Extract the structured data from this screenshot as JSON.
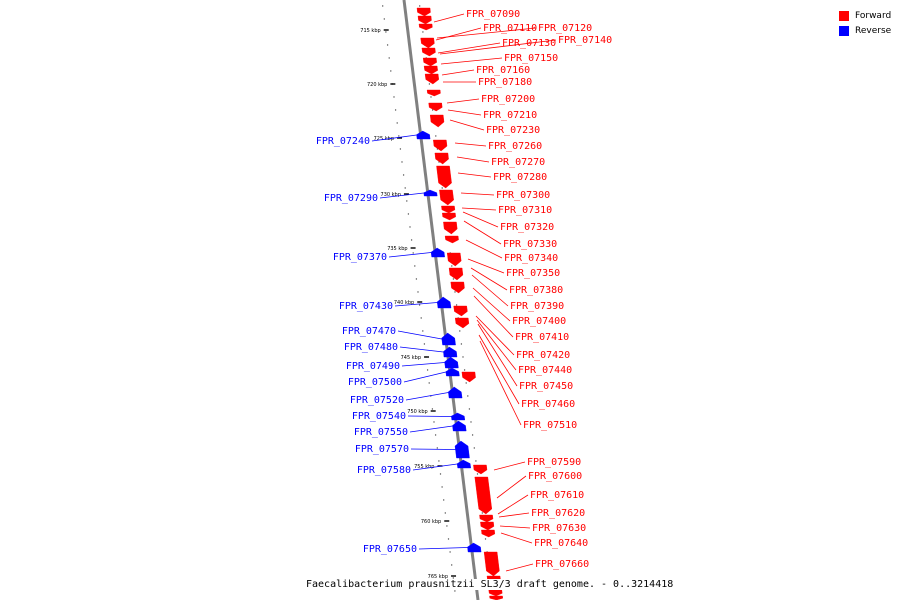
{
  "title": "Faecalibacterium prausnitzii SL3/3 draft genome. - 0..3214418",
  "legend": [
    {
      "label": "Forward",
      "color": "#ff0000"
    },
    {
      "label": "Reverse",
      "color": "#0000ff"
    }
  ],
  "colors": {
    "forward": "#ff0000",
    "reverse": "#0000ff",
    "axis": "#808080"
  },
  "scale_labels": [
    "715 kbp",
    "720 kbp",
    "725 kbp",
    "730 kbp",
    "735 kbp",
    "740 kbp",
    "745 kbp",
    "750 kbp",
    "755 kbp",
    "760 kbp",
    "765 kbp"
  ],
  "forward_genes": [
    "FPR_07090",
    "FPR_07110",
    "FPR_07120",
    "FPR_07130",
    "FPR_07140",
    "FPR_07150",
    "FPR_07160",
    "FPR_07180",
    "FPR_07200",
    "FPR_07210",
    "FPR_07230",
    "FPR_07260",
    "FPR_07270",
    "FPR_07280",
    "FPR_07300",
    "FPR_07310",
    "FPR_07320",
    "FPR_07330",
    "FPR_07340",
    "FPR_07350",
    "FPR_07380",
    "FPR_07390",
    "FPR_07400",
    "FPR_07410",
    "FPR_07420",
    "FPR_07440",
    "FPR_07450",
    "FPR_07460",
    "FPR_07510",
    "FPR_07590",
    "FPR_07600",
    "FPR_07610",
    "FPR_07620",
    "FPR_07630",
    "FPR_07640",
    "FPR_07660"
  ],
  "reverse_genes": [
    "FPR_07240",
    "FPR_07290",
    "FPR_07370",
    "FPR_07430",
    "FPR_07470",
    "FPR_07480",
    "FPR_07490",
    "FPR_07500",
    "FPR_07520",
    "FPR_07540",
    "FPR_07550",
    "FPR_07570",
    "FPR_07580",
    "FPR_07650"
  ]
}
